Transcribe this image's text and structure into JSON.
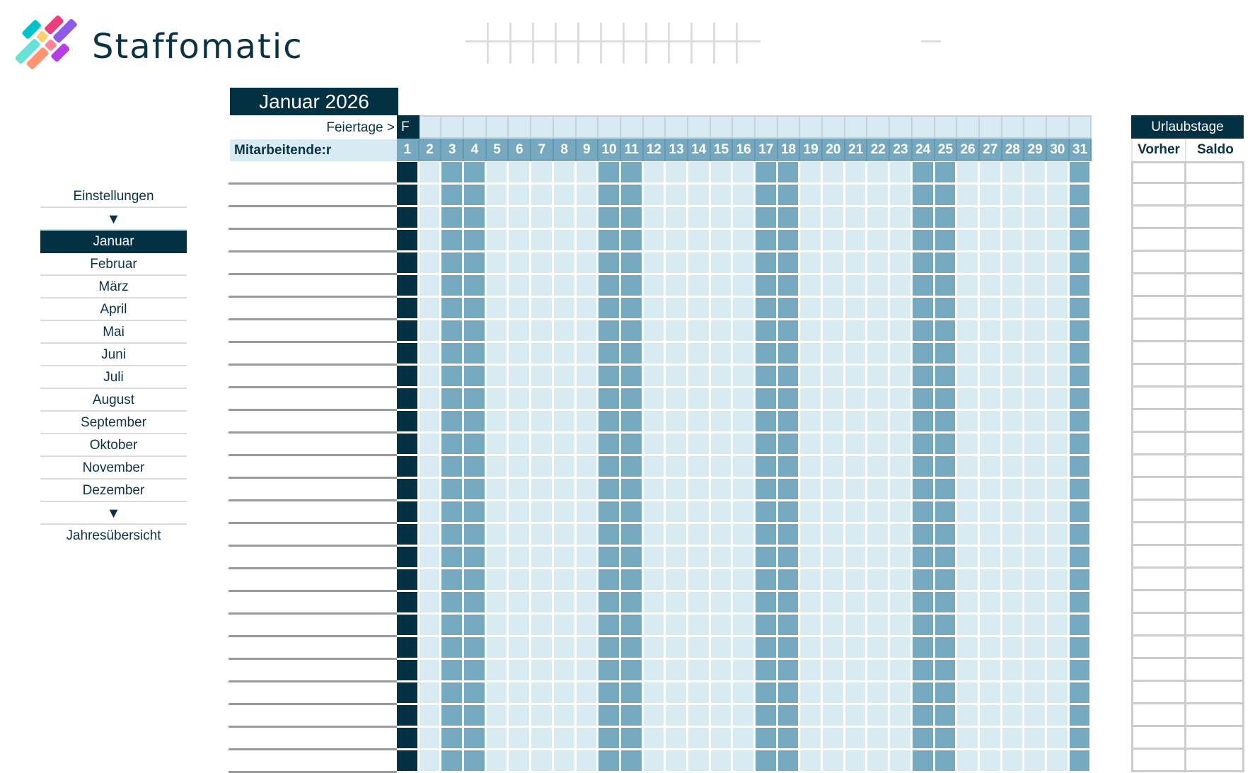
{
  "brand": {
    "name": "Staffomatic",
    "logo_colors": [
      "#00c2cb",
      "#68e1d6",
      "#ffd270",
      "#ee3d7f",
      "#ff9470",
      "#ff8597",
      "#8e5ae6",
      "#b33ee6"
    ]
  },
  "sidebar": {
    "settings_label": "Einstellungen",
    "arrow_top": "▼",
    "months": [
      {
        "label": "Januar",
        "active": true
      },
      {
        "label": "Februar"
      },
      {
        "label": "März"
      },
      {
        "label": "April"
      },
      {
        "label": "Mai"
      },
      {
        "label": "Juni"
      },
      {
        "label": "Juli"
      },
      {
        "label": "August"
      },
      {
        "label": "September"
      },
      {
        "label": "Oktober"
      },
      {
        "label": "November"
      },
      {
        "label": "Dezember"
      }
    ],
    "arrow_bottom": "▼",
    "overview_label": "Jahresübersicht"
  },
  "calendar": {
    "title": "Januar 2026",
    "holiday_row_label": "Feiertage >",
    "staff_column_header": "Mitarbeitende:r",
    "holiday_marker": "F",
    "days": [
      1,
      2,
      3,
      4,
      5,
      6,
      7,
      8,
      9,
      10,
      11,
      12,
      13,
      14,
      15,
      16,
      17,
      18,
      19,
      20,
      21,
      22,
      23,
      24,
      25,
      26,
      27,
      28,
      29,
      30,
      31
    ],
    "holidays": [
      1
    ],
    "weekends": [
      3,
      4,
      10,
      11,
      17,
      18,
      24,
      25,
      31
    ],
    "visible_rows": 27,
    "colors": {
      "navy": "#033144",
      "weekend": "#76a9bf",
      "weekday": "#d9ebf2"
    }
  },
  "vacation": {
    "title": "Urlaubstage",
    "col_previous": "Vorher",
    "col_balance": "Saldo"
  }
}
